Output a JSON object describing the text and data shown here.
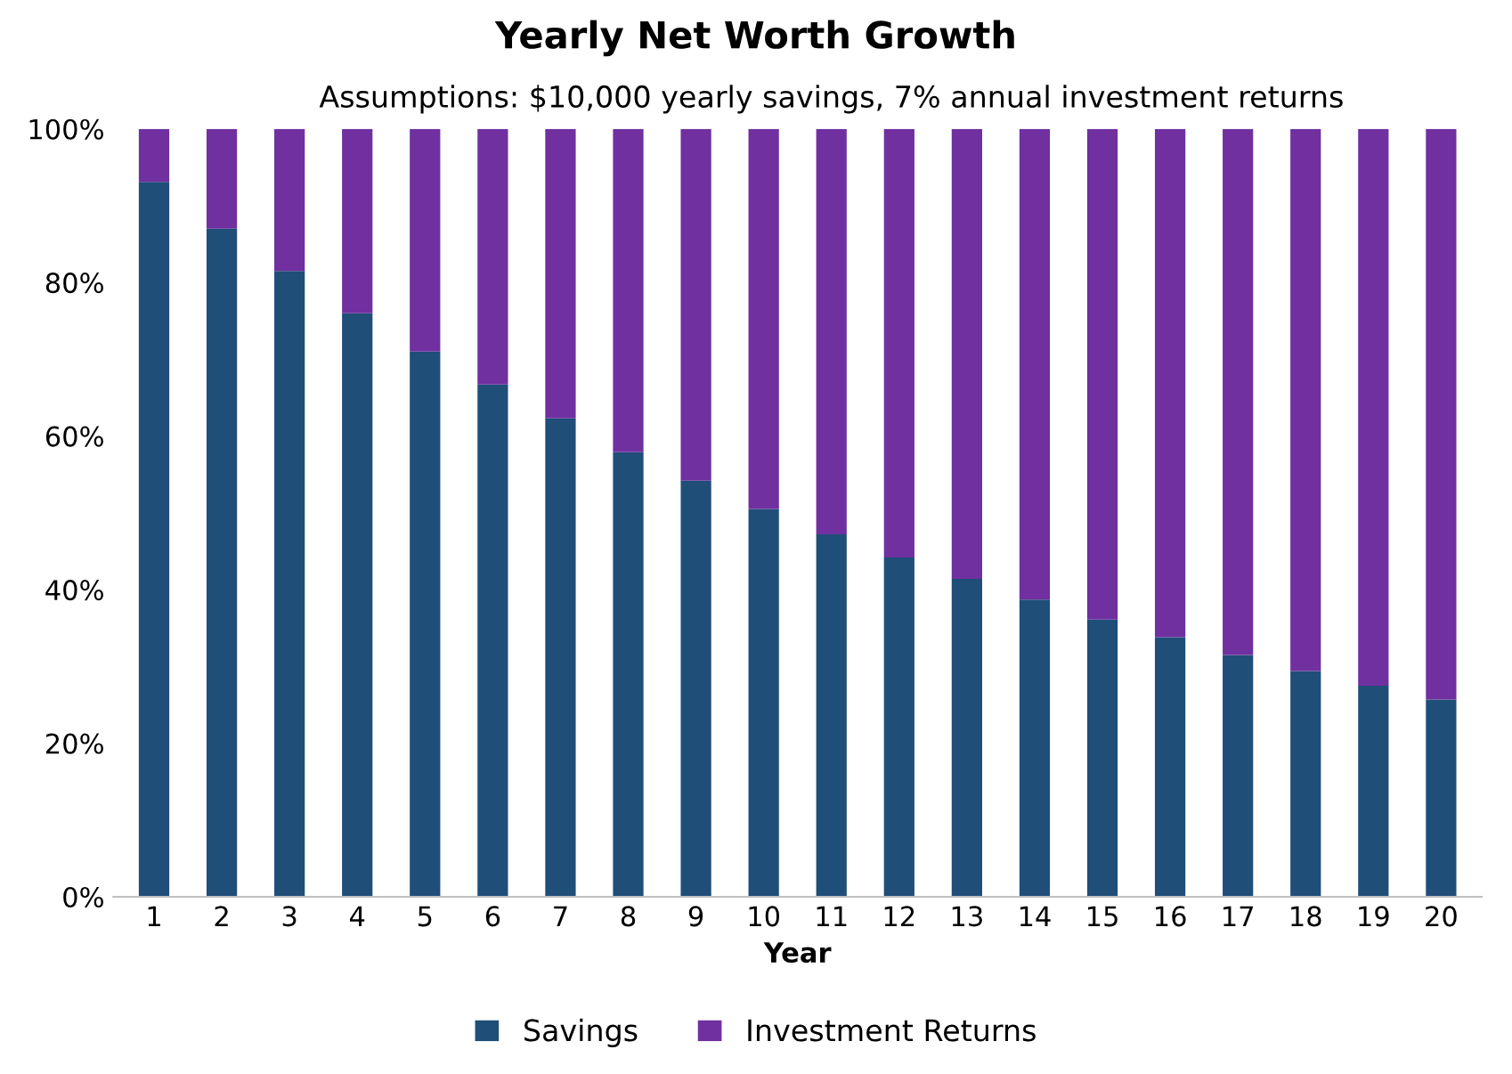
{
  "chart_data": {
    "type": "bar",
    "title": "Yearly Net Worth Growth",
    "subtitle": "Assumptions: $10,000 yearly savings, 7% annual investment returns",
    "xlabel": "Year",
    "categories": [
      "1",
      "2",
      "3",
      "4",
      "5",
      "6",
      "7",
      "8",
      "9",
      "10",
      "11",
      "12",
      "13",
      "14",
      "15",
      "16",
      "17",
      "18",
      "19",
      "20"
    ],
    "stacked": true,
    "series": [
      {
        "name": "Savings",
        "color": "#1f4e79",
        "values": [
          93.1,
          87,
          81.5,
          76,
          71,
          66.7,
          62.3,
          57.9,
          54.2,
          50.5,
          47.2,
          44.2,
          41.4,
          38.7,
          36.1,
          33.8,
          31.5,
          29.4,
          27.5,
          25.7
        ]
      },
      {
        "name": "Investment Returns",
        "color": "#7030a0",
        "values": [
          6.9,
          13,
          18.5,
          24,
          29,
          33.3,
          37.7,
          42.1,
          45.8,
          49.5,
          52.8,
          55.8,
          58.6,
          61.3,
          63.9,
          66.2,
          68.5,
          70.6,
          72.5,
          74.3
        ]
      }
    ],
    "ylim": [
      0,
      100
    ],
    "yticks": [
      {
        "value": 0,
        "label": "0%"
      },
      {
        "value": 20,
        "label": "20%"
      },
      {
        "value": 40,
        "label": "40%"
      },
      {
        "value": 60,
        "label": "60%"
      },
      {
        "value": 80,
        "label": "80%"
      },
      {
        "value": 100,
        "label": "100%"
      }
    ],
    "legend": "bottom"
  }
}
